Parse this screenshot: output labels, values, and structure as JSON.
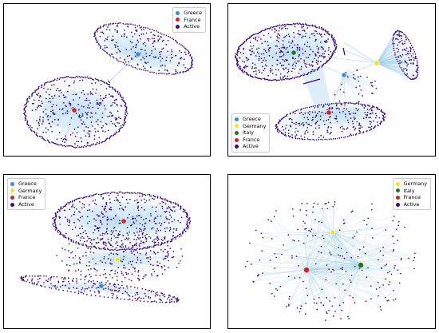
{
  "colors": {
    "Greece": "#2f8fe0",
    "Germany": "#f5e31a",
    "Italy": "#1e7a1e",
    "France": "#dc1e1e",
    "Active": "#3e0a82",
    "edge": "#9fd0e8",
    "blob": "#cfe7f5"
  },
  "panels": [
    {
      "id": "top-left",
      "legend": [
        "Greece",
        "France",
        "Active"
      ],
      "hub_labels": {
        "Greece": "",
        "France": ""
      }
    },
    {
      "id": "top-right",
      "legend": [
        "Greece",
        "Germany",
        "Italy",
        "France",
        "Active"
      ],
      "hub_labels": {
        "Greece": "",
        "Germany": "",
        "Italy": "",
        "France": ""
      }
    },
    {
      "id": "bottom-left",
      "legend": [
        "Greece",
        "Germany",
        "France",
        "Active"
      ],
      "hub_labels": {
        "Greece": "",
        "Germany": "",
        "France": ""
      }
    },
    {
      "id": "bottom-right",
      "legend": [
        "Germany",
        "Italy",
        "France",
        "Active"
      ],
      "hub_labels": {
        "Germany": "",
        "Italy": "",
        "France": ""
      }
    }
  ]
}
